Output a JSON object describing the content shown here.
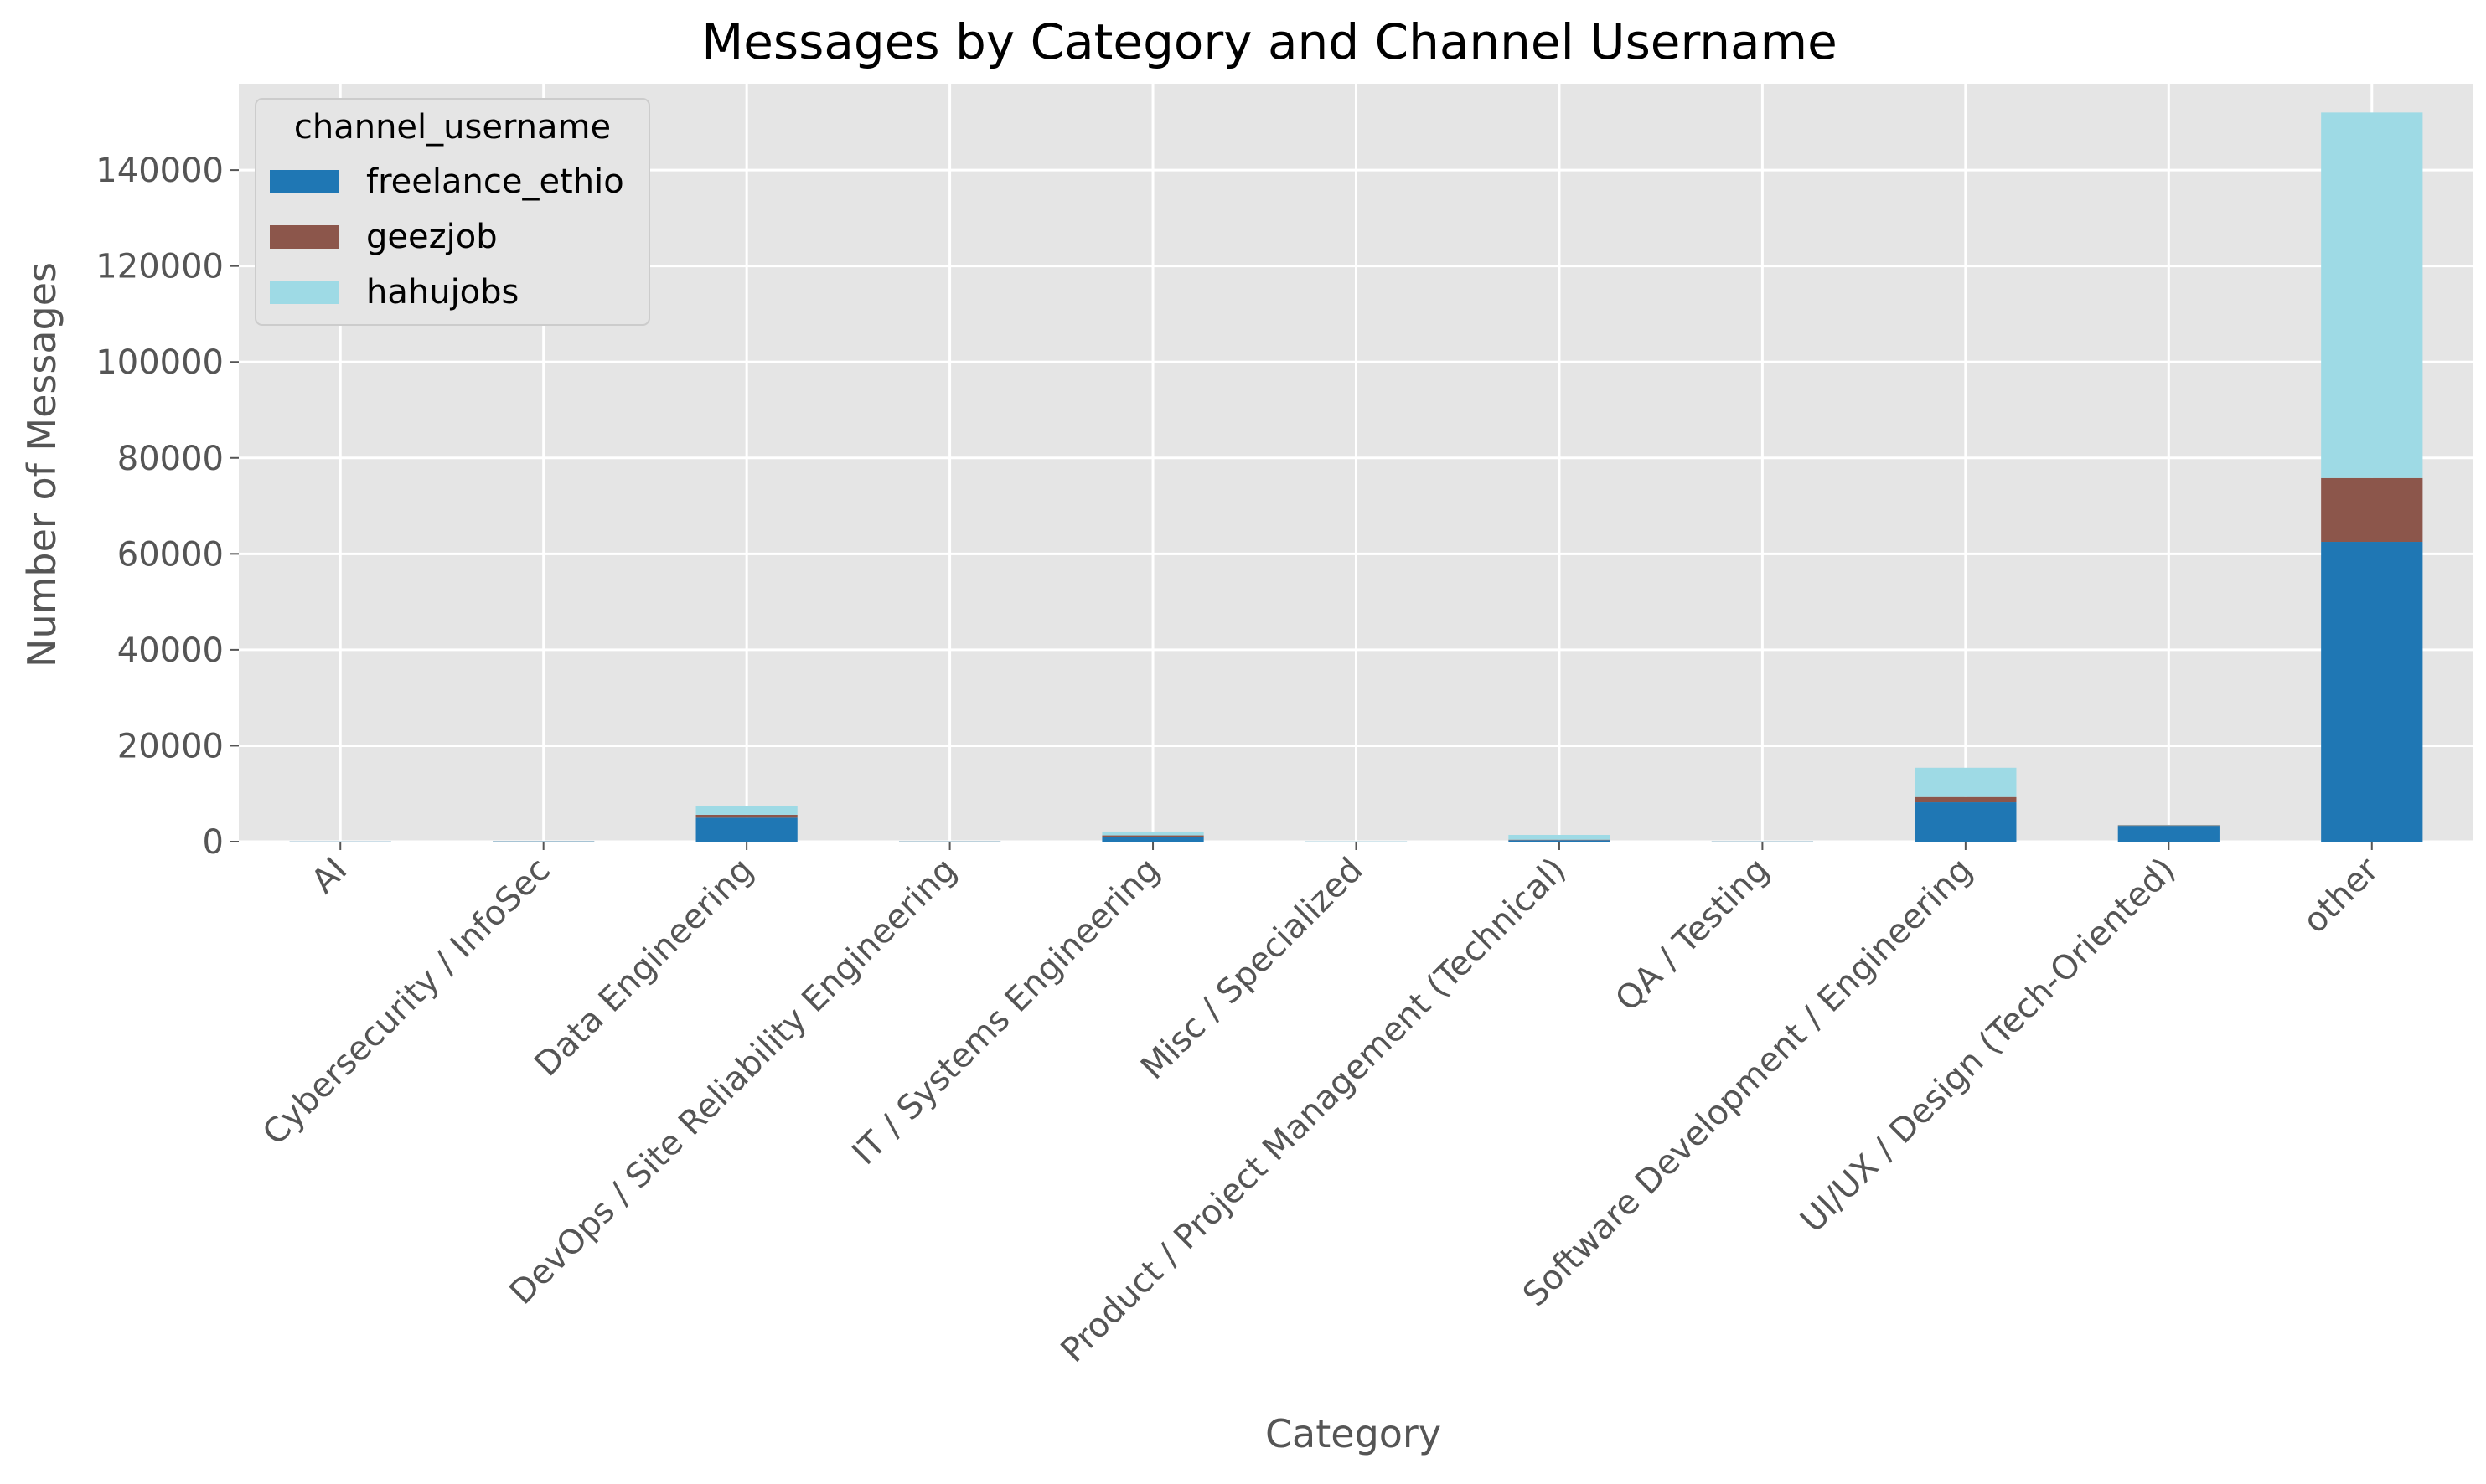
{
  "chart_data": {
    "type": "bar",
    "stacked": true,
    "title": "Messages by Category and Channel Username",
    "xlabel": "Category",
    "ylabel": "Number of Messages",
    "ylim": [
      0,
      158000
    ],
    "yticks": [
      0,
      20000,
      40000,
      60000,
      80000,
      100000,
      120000,
      140000
    ],
    "ytick_labels": [
      "0",
      "20000",
      "40000",
      "60000",
      "80000",
      "100000",
      "120000",
      "140000"
    ],
    "grid": true,
    "legend_title": "channel_username",
    "legend_position": "top-left",
    "categories": [
      "AI",
      "Cybersecurity / InfoSec",
      "Data Engineering",
      "DevOps / Site Reliability Engineering",
      "IT / Systems Engineering",
      "Misc / Specialized",
      "Product / Project Management (Technical)",
      "QA / Testing",
      "Software Development / Engineering",
      "UI/UX / Design (Tech-Oriented)",
      "other"
    ],
    "series": [
      {
        "name": "freelance_ethio",
        "color": "#1f77b4",
        "values": [
          40,
          60,
          5000,
          50,
          1000,
          30,
          300,
          40,
          8200,
          3300,
          62500
        ]
      },
      {
        "name": "geezjob",
        "color": "#8c564b",
        "values": [
          10,
          20,
          600,
          20,
          300,
          10,
          100,
          20,
          1100,
          100,
          13300
        ]
      },
      {
        "name": "hahujobs",
        "color": "#9edae5",
        "values": [
          20,
          40,
          1800,
          30,
          800,
          40,
          1000,
          40,
          6100,
          100,
          76200
        ]
      }
    ]
  }
}
